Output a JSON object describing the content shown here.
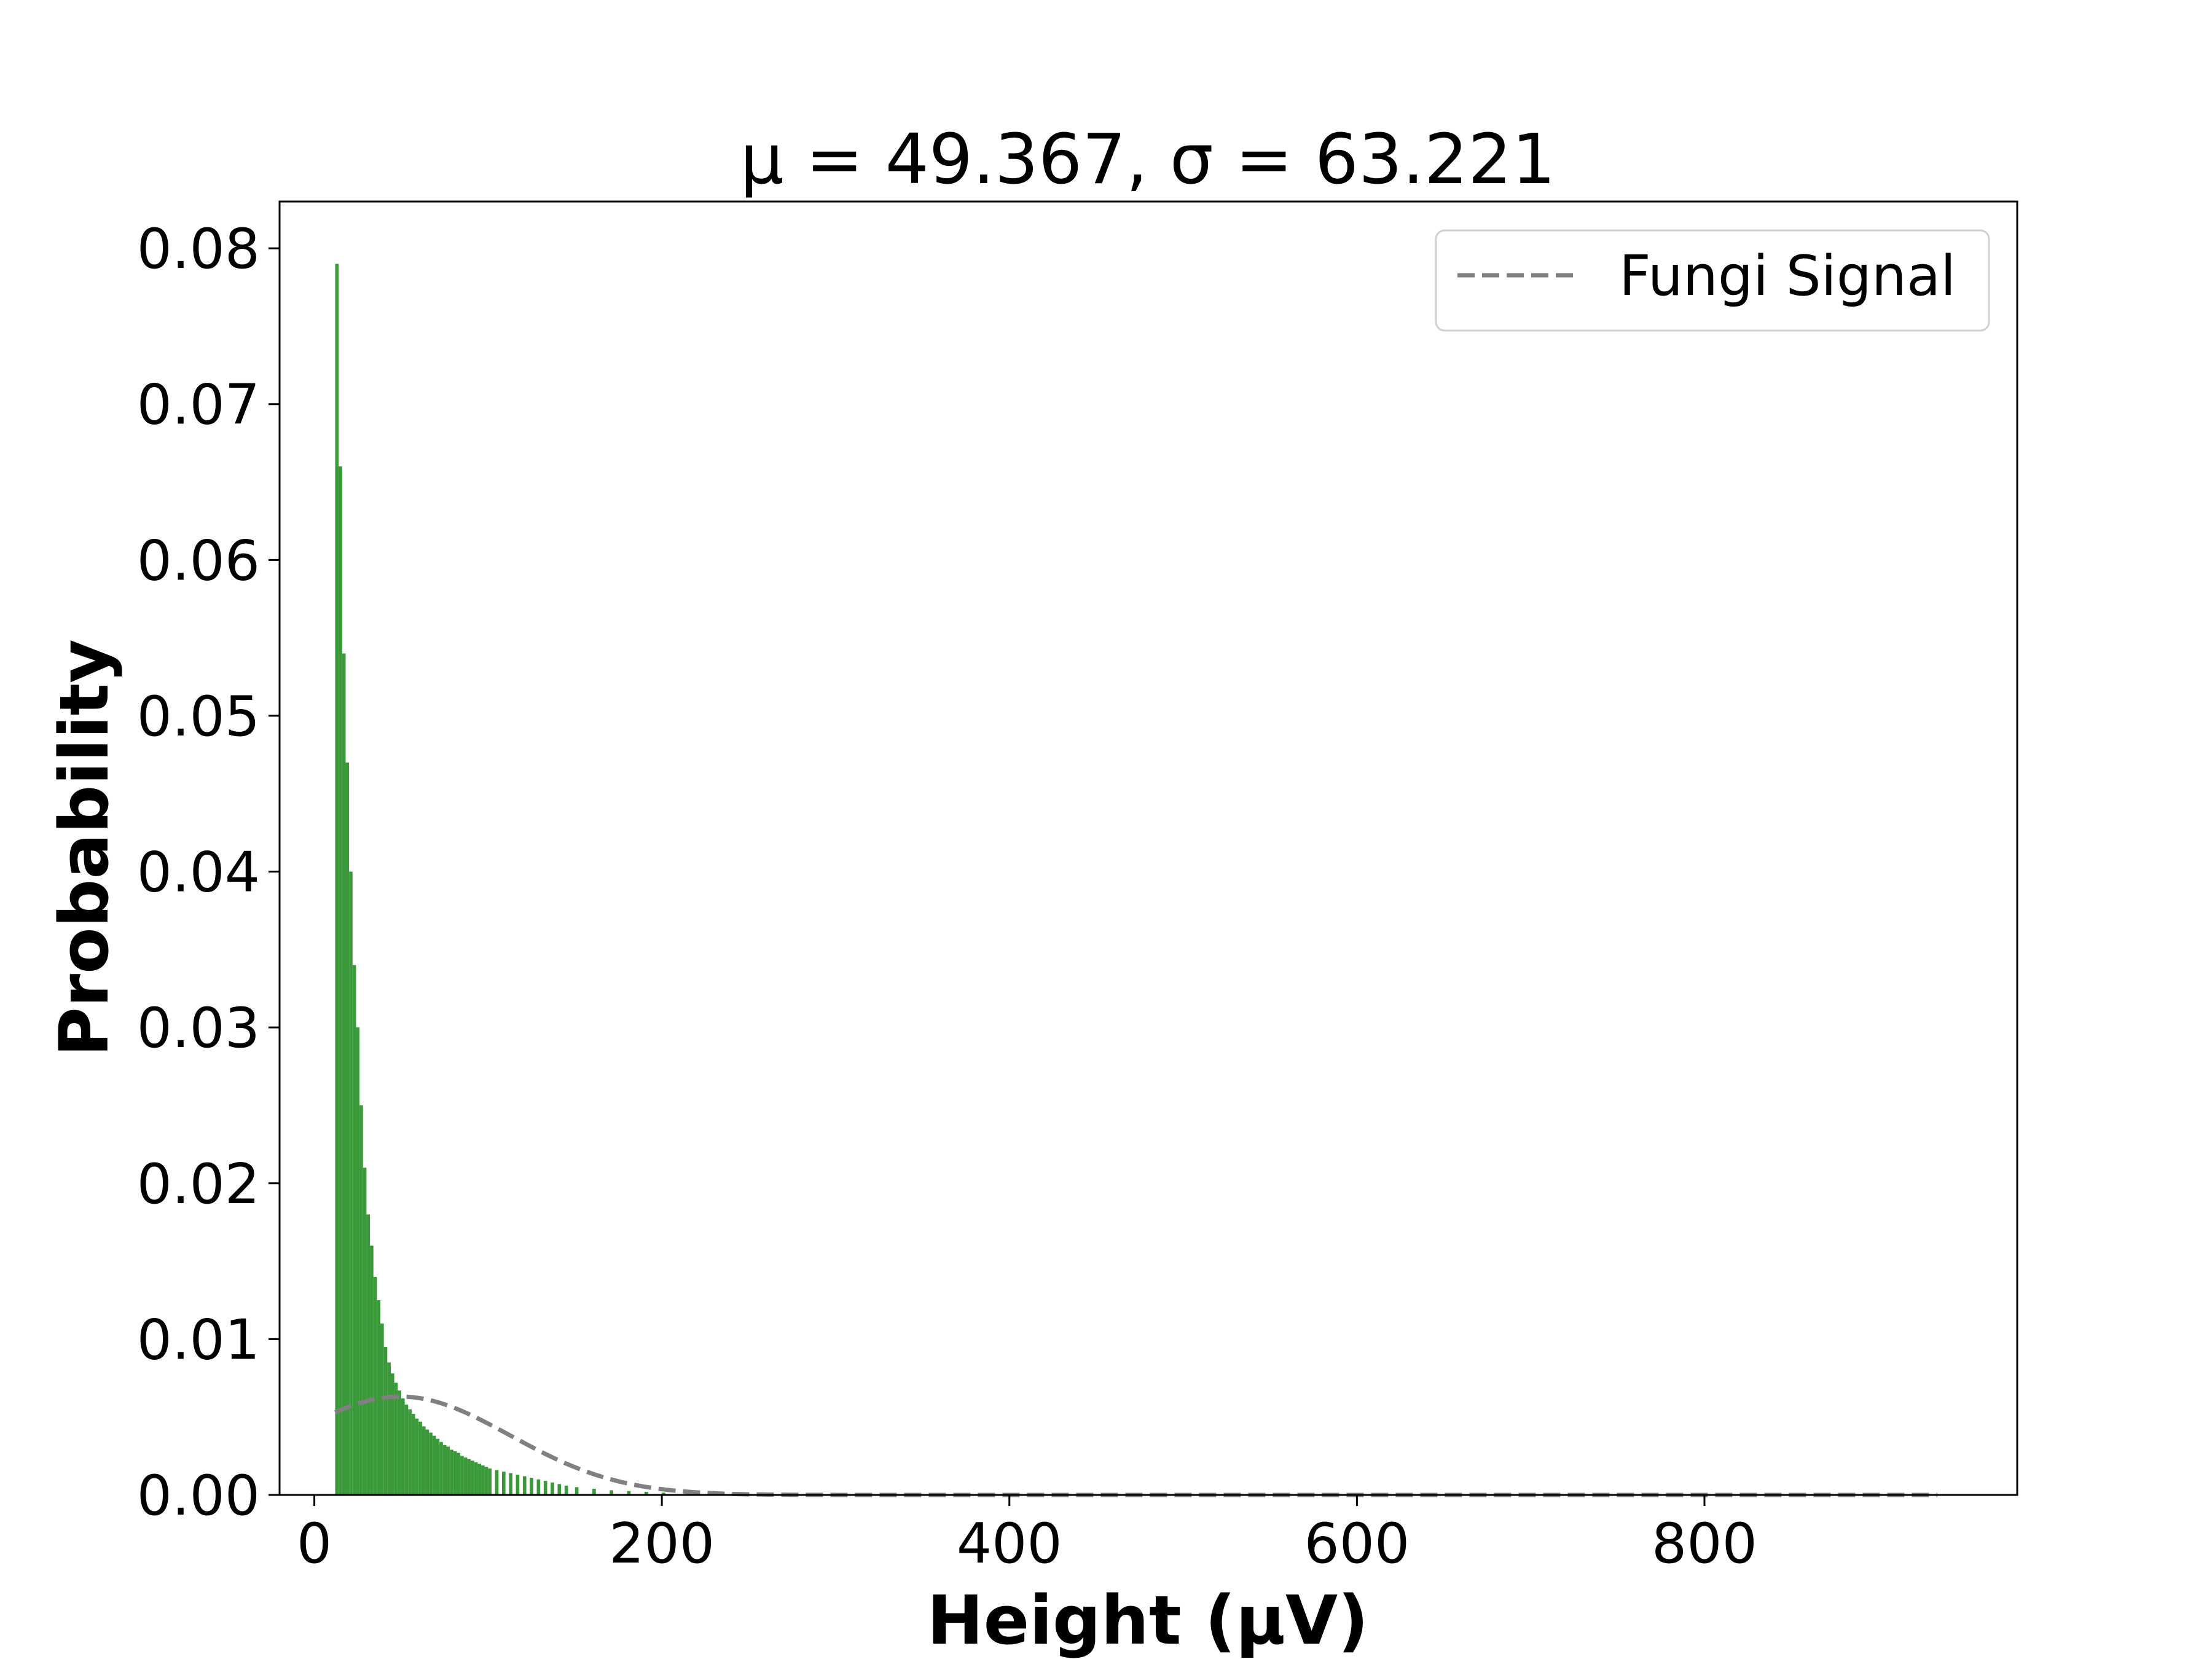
{
  "chart_data": {
    "type": "bar",
    "title": "μ = 49.367,  σ = 63.221",
    "xlabel": "Height (μV)",
    "ylabel": "Probability",
    "xlim": [
      -20,
      980
    ],
    "ylim": [
      0,
      0.083
    ],
    "xticks": [
      0,
      200,
      400,
      600,
      800
    ],
    "yticks": [
      0.0,
      0.01,
      0.02,
      0.03,
      0.04,
      0.05,
      0.06,
      0.07,
      0.08
    ],
    "xtick_labels": [
      "0",
      "200",
      "400",
      "600",
      "800"
    ],
    "ytick_labels": [
      "0.00",
      "0.01",
      "0.02",
      "0.03",
      "0.04",
      "0.05",
      "0.06",
      "0.07",
      "0.08"
    ],
    "grid": false,
    "legend": {
      "position": "top-right",
      "entries": [
        "Fungi Signal"
      ]
    },
    "histogram": {
      "color": "#3a9a3a",
      "bin_width": 2,
      "bins": [
        [
          12,
          0.079
        ],
        [
          14,
          0.066
        ],
        [
          16,
          0.054
        ],
        [
          18,
          0.047
        ],
        [
          20,
          0.04
        ],
        [
          22,
          0.034
        ],
        [
          24,
          0.03
        ],
        [
          26,
          0.025
        ],
        [
          28,
          0.021
        ],
        [
          30,
          0.018
        ],
        [
          32,
          0.016
        ],
        [
          34,
          0.014
        ],
        [
          36,
          0.0125
        ],
        [
          38,
          0.011
        ],
        [
          40,
          0.0095
        ],
        [
          42,
          0.0085
        ],
        [
          44,
          0.0078
        ],
        [
          46,
          0.0072
        ],
        [
          48,
          0.0067
        ],
        [
          50,
          0.0062
        ],
        [
          52,
          0.0058
        ],
        [
          54,
          0.0055
        ],
        [
          56,
          0.0052
        ],
        [
          58,
          0.0049
        ],
        [
          60,
          0.0047
        ],
        [
          62,
          0.0044
        ],
        [
          64,
          0.0042
        ],
        [
          66,
          0.004
        ],
        [
          68,
          0.0038
        ],
        [
          70,
          0.0036
        ],
        [
          72,
          0.0034
        ],
        [
          74,
          0.0032
        ],
        [
          76,
          0.0031
        ],
        [
          78,
          0.0029
        ],
        [
          80,
          0.0028
        ],
        [
          82,
          0.0027
        ],
        [
          84,
          0.0025
        ],
        [
          86,
          0.0024
        ],
        [
          88,
          0.0023
        ],
        [
          90,
          0.0022
        ],
        [
          92,
          0.0021
        ],
        [
          94,
          0.002
        ],
        [
          96,
          0.0019
        ],
        [
          98,
          0.0018
        ],
        [
          100,
          0.0017
        ],
        [
          104,
          0.0016
        ],
        [
          108,
          0.0015
        ],
        [
          112,
          0.0014
        ],
        [
          116,
          0.0013
        ],
        [
          120,
          0.0012
        ],
        [
          124,
          0.0011
        ],
        [
          128,
          0.001
        ],
        [
          132,
          0.0009
        ],
        [
          136,
          0.0008
        ],
        [
          140,
          0.0007
        ],
        [
          144,
          0.0006
        ],
        [
          150,
          0.0005
        ],
        [
          160,
          0.0004
        ],
        [
          170,
          0.0003
        ],
        [
          180,
          0.00025
        ],
        [
          190,
          0.0002
        ],
        [
          200,
          0.00015
        ],
        [
          220,
          0.0001
        ],
        [
          240,
          8e-05
        ],
        [
          260,
          5e-05
        ],
        [
          280,
          4e-05
        ],
        [
          300,
          3e-05
        ],
        [
          350,
          2e-05
        ],
        [
          400,
          1e-05
        ],
        [
          500,
          5e-06
        ]
      ]
    },
    "series": [
      {
        "name": "Fungi Signal",
        "type": "line",
        "style": "dashed",
        "color": "#808080",
        "mean": 49.367,
        "std": 63.221,
        "x_range": [
          12,
          935
        ]
      }
    ]
  }
}
